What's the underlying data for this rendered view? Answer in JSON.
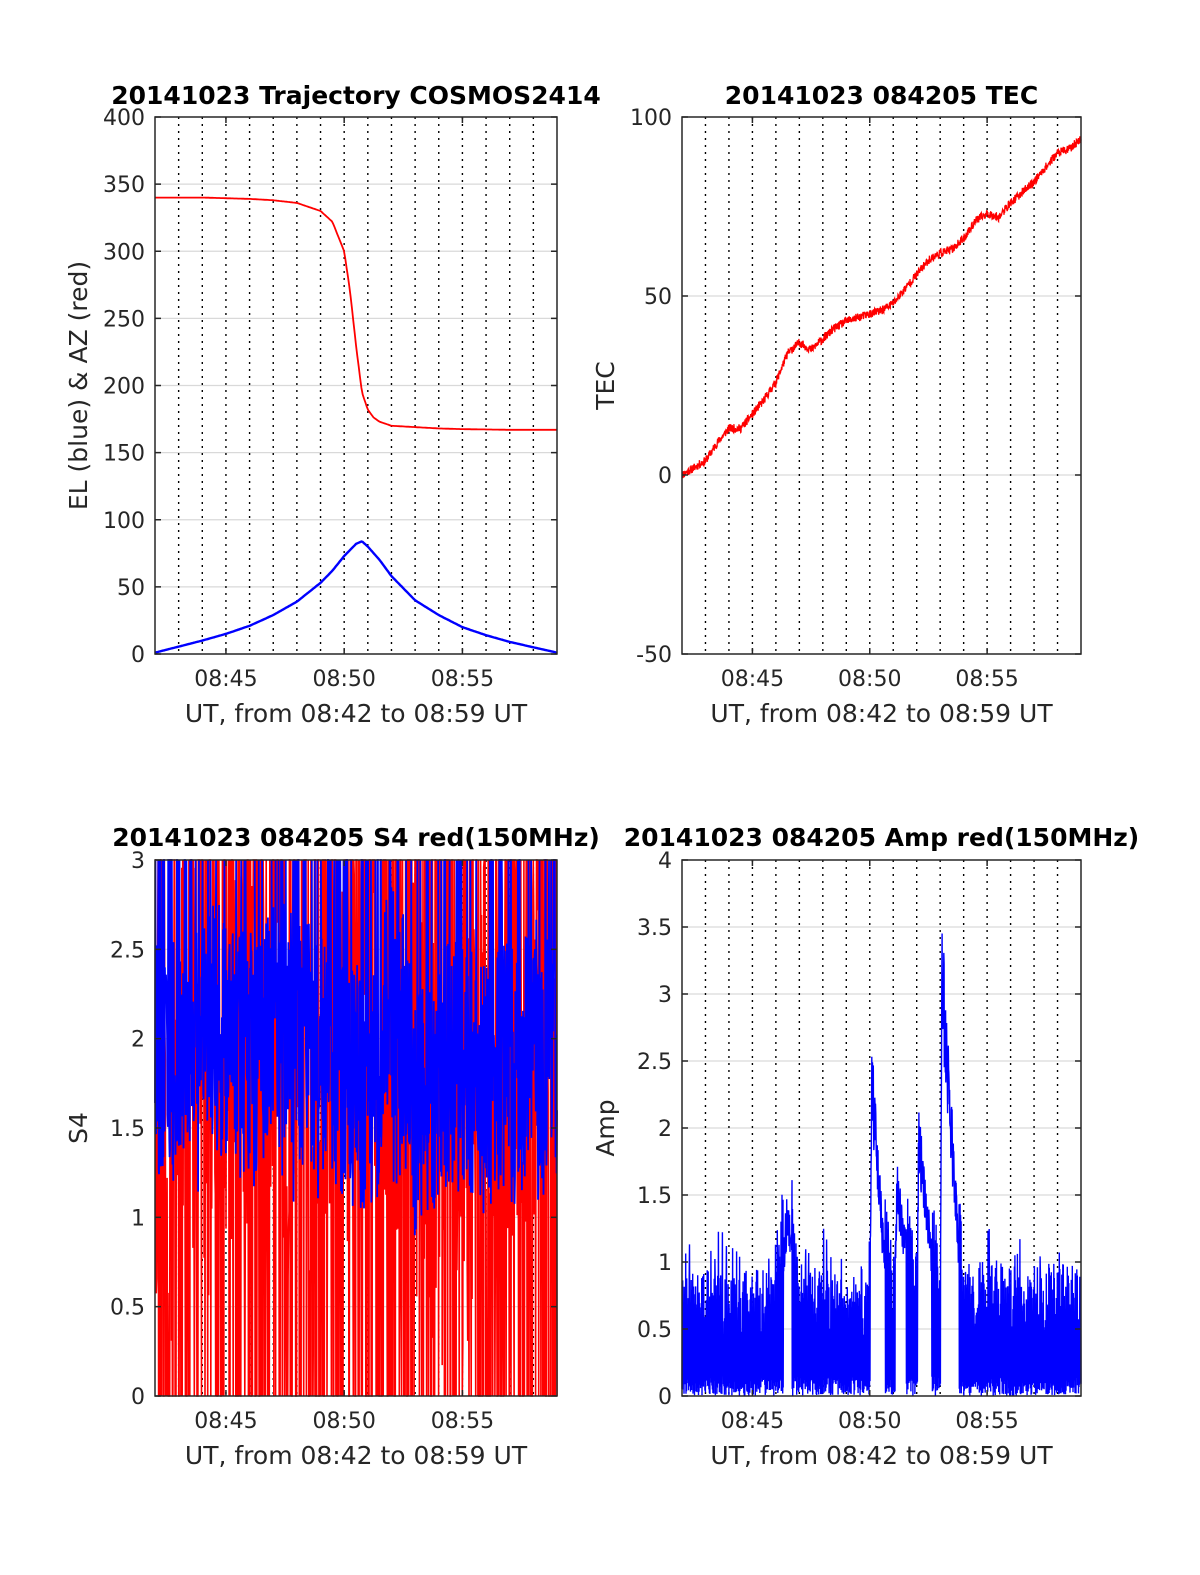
{
  "chart_data": [
    {
      "type": "line",
      "title": "20141023 Trajectory COSMOS2414",
      "xlabel": "UT, from 08:42 to 08:59 UT",
      "ylabel": "EL (blue) & AZ (red)",
      "xlim": [
        "08:42",
        "08:59"
      ],
      "ylim": [
        0,
        400
      ],
      "xtick_labels": [
        "08:45",
        "08:50",
        "08:55"
      ],
      "ytick_labels": [
        "0",
        "50",
        "100",
        "150",
        "200",
        "250",
        "300",
        "350",
        "400"
      ],
      "grid": "y solid, x dotted every minute",
      "series": [
        {
          "color": "#ff0000",
          "x": [
            "08:42",
            "08:44",
            "08:46",
            "08:47",
            "08:48",
            "08:49",
            "08:49:30",
            "08:50",
            "08:50:15",
            "08:50:30",
            "08:50:45",
            "08:51",
            "08:51:15",
            "08:51:30",
            "08:52",
            "08:53",
            "08:54",
            "08:55",
            "08:57",
            "08:59"
          ],
          "values": [
            340,
            340,
            339,
            338,
            336,
            330,
            322,
            300,
            270,
            230,
            195,
            182,
            176,
            173,
            170,
            169,
            168,
            167.5,
            167,
            167
          ]
        },
        {
          "color": "#0000ff",
          "x": [
            "08:42",
            "08:44",
            "08:45",
            "08:46",
            "08:47",
            "08:48",
            "08:49",
            "08:49:30",
            "08:50",
            "08:50:30",
            "08:50:45",
            "08:51",
            "08:51:30",
            "08:52",
            "08:53",
            "08:54",
            "08:55",
            "08:56",
            "08:57",
            "08:58",
            "08:59"
          ],
          "values": [
            1,
            10,
            15,
            21,
            29,
            39,
            53,
            62,
            73,
            82,
            84,
            80,
            70,
            58,
            40,
            29,
            20,
            14,
            9,
            5,
            1
          ]
        }
      ]
    },
    {
      "type": "line",
      "title": "20141023 084205 TEC",
      "xlabel": "UT, from 08:42 to 08:59 UT",
      "ylabel": "TEC",
      "xlim": [
        "08:42",
        "08:59"
      ],
      "ylim": [
        -50,
        100
      ],
      "xtick_labels": [
        "08:45",
        "08:50",
        "08:55"
      ],
      "ytick_labels": [
        "-50",
        "0",
        "50",
        "100"
      ],
      "grid": "y solid, x dotted every minute",
      "series": [
        {
          "color": "#ff0000",
          "x": [
            "08:42",
            "08:43",
            "08:43:30",
            "08:44",
            "08:44:30",
            "08:45",
            "08:45:30",
            "08:46",
            "08:46:30",
            "08:47",
            "08:47:30",
            "08:48",
            "08:48:30",
            "08:49",
            "08:49:30",
            "08:50",
            "08:50:30",
            "08:51",
            "08:51:30",
            "08:52",
            "08:52:30",
            "08:53",
            "08:53:30",
            "08:54",
            "08:54:30",
            "08:55",
            "08:55:30",
            "08:56",
            "08:56:30",
            "08:57",
            "08:57:30",
            "08:58",
            "08:58:30",
            "08:59"
          ],
          "values": [
            0,
            4,
            9,
            13,
            13,
            17,
            21,
            26,
            34,
            37,
            35,
            38,
            41,
            43,
            44,
            45,
            46,
            48,
            52,
            56,
            60,
            62,
            63,
            66,
            71,
            73,
            72,
            76,
            79,
            82,
            86,
            90,
            91,
            94
          ]
        }
      ]
    },
    {
      "type": "line",
      "title": "20141023 084205 S4 red(150MHz)",
      "xlabel": "UT, from 08:42 to 08:59 UT",
      "ylabel": "S4",
      "xlim": [
        "08:42",
        "08:59"
      ],
      "ylim": [
        0,
        3
      ],
      "xtick_labels": [
        "08:45",
        "08:50",
        "08:55"
      ],
      "ytick_labels": [
        "0",
        "0.5",
        "1",
        "1.5",
        "2",
        "2.5",
        "3"
      ],
      "grid": "y solid, x dotted every minute",
      "series": [
        {
          "color": "#ff0000",
          "x": [
            "08:42",
            "08:44",
            "08:46",
            "08:48",
            "08:50",
            "08:52",
            "08:53",
            "08:54",
            "08:55",
            "08:56",
            "08:57",
            "08:58",
            "08:59"
          ],
          "values": [
            1.5,
            1.8,
            2.0,
            1.9,
            2.1,
            2.2,
            1.6,
            1.4,
            1.5,
            1.8,
            2.0,
            2.2,
            1.9
          ],
          "band": [
            0,
            3
          ]
        },
        {
          "color": "#0000ff",
          "x": [
            "08:42",
            "08:43",
            "08:44",
            "08:45",
            "08:46",
            "08:47",
            "08:48",
            "08:49",
            "08:50",
            "08:51",
            "08:52",
            "08:52:30",
            "08:53",
            "08:54",
            "08:55",
            "08:56",
            "08:57",
            "08:58",
            "08:59"
          ],
          "values": [
            1.9,
            2.0,
            2.2,
            2.0,
            1.9,
            2.1,
            2.0,
            1.9,
            1.8,
            1.7,
            2.2,
            2.1,
            1.5,
            1.8,
            1.9,
            1.7,
            1.9,
            2.0,
            1.8
          ],
          "band": [
            1.05,
            3
          ]
        }
      ]
    },
    {
      "type": "line",
      "title": "20141023 084205 Amp red(150MHz)",
      "xlabel": "UT, from 08:42 to 08:59 UT",
      "ylabel": "Amp",
      "xlim": [
        "08:42",
        "08:59"
      ],
      "ylim": [
        0,
        4
      ],
      "xtick_labels": [
        "08:45",
        "08:50",
        "08:55"
      ],
      "ytick_labels": [
        "0",
        "0.5",
        "1",
        "1.5",
        "2",
        "2.5",
        "3",
        "3.5",
        "4"
      ],
      "grid": "y solid, x dotted every minute",
      "series": [
        {
          "color": "#0000ff",
          "x": [
            "08:42",
            "08:43",
            "08:44",
            "08:45",
            "08:46",
            "08:46:30",
            "08:47",
            "08:48",
            "08:49",
            "08:50",
            "08:50:05",
            "08:50:30",
            "08:51",
            "08:51:10",
            "08:52",
            "08:52:05",
            "08:53",
            "08:53:05",
            "08:53:15",
            "08:54",
            "08:55",
            "08:56",
            "08:57",
            "08:58",
            "08:59"
          ],
          "values": [
            0.45,
            0.5,
            0.5,
            0.5,
            0.55,
            1.55,
            0.55,
            0.5,
            0.5,
            0.55,
            2.67,
            1.48,
            0.55,
            1.75,
            0.55,
            2.2,
            0.55,
            3.6,
            2.97,
            0.55,
            0.6,
            0.55,
            0.55,
            0.55,
            0.55
          ],
          "band": [
            0,
            1.2
          ]
        }
      ]
    }
  ]
}
